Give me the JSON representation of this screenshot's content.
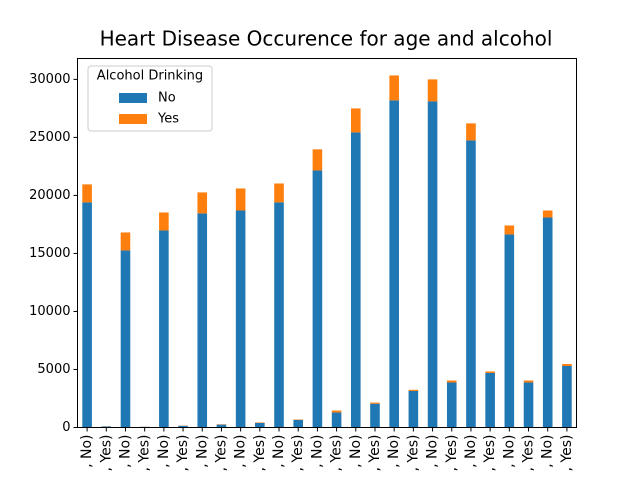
{
  "chart_data": {
    "type": "stacked_bar",
    "title": "Heart Disease Occurence for age and alcohol",
    "legend_title": "Alcohol Drinking",
    "legend_position": "upper left",
    "categories": [
      ", No)",
      ", Yes)",
      ", No)",
      ", Yes)",
      ", No)",
      ", Yes)",
      ", No)",
      ", Yes)",
      ", No)",
      ", Yes)",
      ", No)",
      ", Yes)",
      ", No)",
      ", Yes)",
      ", No)",
      ", Yes)",
      ", No)",
      ", Yes)",
      ", No)",
      ", Yes)",
      ", No)",
      ", Yes)",
      ", No)",
      ", Yes)",
      ", No)",
      ", Yes)"
    ],
    "series": [
      {
        "name": "No",
        "color": "#1f77b4",
        "values": [
          19400,
          90,
          15260,
          60,
          16980,
          150,
          18450,
          250,
          18700,
          400,
          19400,
          650,
          22150,
          1290,
          25430,
          2050,
          28190,
          3150,
          28100,
          3880,
          24740,
          4700,
          16640,
          3880,
          18100,
          5300
        ]
      },
      {
        "name": "Yes",
        "color": "#ff7f0e",
        "values": [
          1550,
          10,
          1550,
          10,
          1550,
          20,
          1810,
          30,
          1900,
          40,
          1630,
          40,
          1820,
          170,
          2070,
          100,
          2150,
          100,
          1900,
          170,
          1470,
          130,
          770,
          170,
          600,
          170
        ]
      }
    ],
    "ylim": [
      0,
      31800
    ],
    "yticks": [
      0,
      5000,
      10000,
      15000,
      20000,
      25000,
      30000
    ]
  }
}
